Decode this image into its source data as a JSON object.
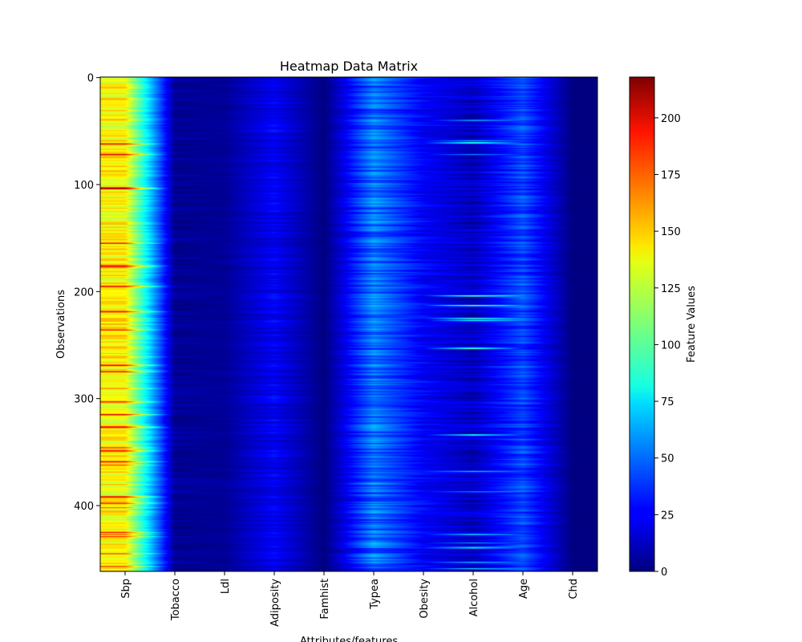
{
  "chart_data": {
    "type": "heatmap",
    "title": "Heatmap Data Matrix",
    "xlabel": "Attributes/features",
    "ylabel": "Observations",
    "colorbar_label": "Feature Values",
    "colormap": "jet",
    "interpolation": "bilinear",
    "columns": [
      "Sbp",
      "Tobacco",
      "Ldl",
      "Adiposity",
      "Famhist",
      "Typea",
      "Obesity",
      "Alcohol",
      "Age",
      "Chd"
    ],
    "n_rows": 462,
    "y_ticks": [
      0,
      100,
      200,
      300,
      400
    ],
    "vmin": 0,
    "vmax": 218,
    "colorbar_ticks": [
      0,
      25,
      50,
      75,
      100,
      125,
      150,
      175,
      200
    ],
    "column_value_ranges": {
      "Sbp": [
        101,
        218
      ],
      "Tobacco": [
        0,
        31
      ],
      "Ldl": [
        1,
        15
      ],
      "Adiposity": [
        7,
        43
      ],
      "Famhist": [
        0,
        1
      ],
      "Typea": [
        13,
        78
      ],
      "Obesity": [
        14,
        47
      ],
      "Alcohol": [
        0,
        147
      ],
      "Age": [
        15,
        64
      ],
      "Chd": [
        0,
        1
      ]
    },
    "column_typical_values": {
      "Sbp": 138,
      "Tobacco": 4,
      "Ldl": 5,
      "Adiposity": 25,
      "Famhist": 0.4,
      "Typea": 53,
      "Obesity": 26,
      "Alcohol": 17,
      "Age": 43,
      "Chd": 0.35
    }
  }
}
